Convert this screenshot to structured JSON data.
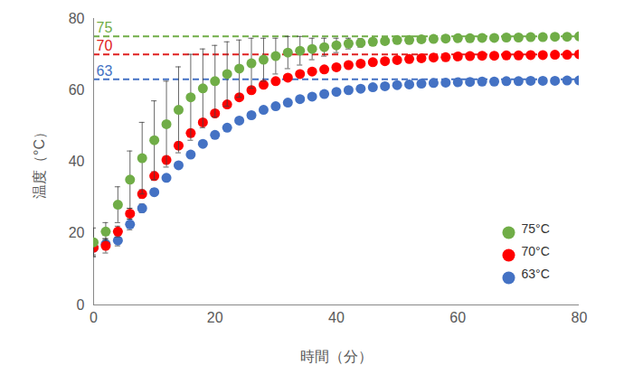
{
  "chart_data": {
    "type": "scatter",
    "xlabel": "時間（分）",
    "ylabel": "温度（°C）",
    "xlim": [
      0,
      80
    ],
    "ylim": [
      0,
      80
    ],
    "xticks": [
      0,
      20,
      40,
      60,
      80
    ],
    "yticks": [
      0,
      20,
      40,
      60,
      80
    ],
    "grid": false,
    "legend": "bottom-right",
    "x": [
      0,
      2,
      4,
      6,
      8,
      10,
      12,
      14,
      16,
      18,
      20,
      22,
      24,
      26,
      28,
      30,
      32,
      34,
      36,
      38,
      40,
      42,
      44,
      46,
      48,
      50,
      52,
      54,
      56,
      58,
      60,
      62,
      64,
      66,
      68,
      70,
      72,
      74,
      76,
      78,
      80
    ],
    "series": [
      {
        "name": "75°C",
        "color": "#70ad47",
        "marker": "circle",
        "values": [
          17.5,
          20.5,
          28,
          35,
          41,
          46,
          50.5,
          54.5,
          58,
          60.5,
          62.5,
          64.5,
          66,
          67.5,
          68.5,
          69.5,
          70.5,
          71,
          71.5,
          72,
          72.5,
          73,
          73.2,
          73.5,
          73.7,
          74,
          74,
          74.2,
          74.3,
          74.4,
          74.5,
          74.5,
          74.6,
          74.6,
          74.7,
          74.7,
          74.8,
          74.8,
          74.9,
          74.9,
          75
        ],
        "errors": [
          4,
          2.5,
          5,
          8,
          10,
          11,
          12,
          12,
          12,
          11,
          10,
          9,
          8,
          7,
          6,
          5,
          4.5,
          4,
          3,
          2.5,
          2,
          1.5,
          1.2,
          1,
          0.8,
          0.7,
          0.6,
          0.5,
          0.5,
          0.4,
          0.4,
          0.4,
          0.3,
          0.3,
          0.3,
          0.3,
          0.3,
          0.3,
          0.3,
          0.3,
          0.3
        ]
      },
      {
        "name": "70°C",
        "color": "#ff0000",
        "marker": "circle",
        "values": [
          16,
          16.5,
          20.5,
          25.5,
          31,
          36,
          40.5,
          44.5,
          48,
          51,
          53.5,
          56,
          58,
          60,
          61.5,
          62.5,
          63.5,
          64.5,
          65.2,
          65.8,
          66.4,
          67,
          67.4,
          67.8,
          68.1,
          68.4,
          68.7,
          68.9,
          69.1,
          69.2,
          69.4,
          69.5,
          69.6,
          69.6,
          69.7,
          69.7,
          69.8,
          69.8,
          69.9,
          69.9,
          70
        ],
        "errors": [
          2.5,
          2,
          1.5,
          1.5,
          1.2,
          1.2,
          1,
          1,
          1,
          0.8,
          0.8,
          0.7,
          0.6,
          0.6,
          0.5,
          0.5,
          0.5,
          0.4,
          0.4,
          0.4,
          0.4,
          0.3,
          0.3,
          0.3,
          0.3,
          0.3,
          0.3,
          0.3,
          0.3,
          0.3,
          0.3,
          0.3,
          0.3,
          0.3,
          0.3,
          0.3,
          0.3,
          0.3,
          0.3,
          0.3,
          0.3
        ]
      },
      {
        "name": "63°C",
        "color": "#4472c4",
        "marker": "circle",
        "values": [
          16,
          17,
          18,
          22.5,
          27,
          31.5,
          35.5,
          39,
          42,
          45,
          47.5,
          49.5,
          51.5,
          53,
          54.5,
          55.5,
          56.5,
          57.5,
          58.2,
          58.9,
          59.5,
          60,
          60.4,
          60.8,
          61.1,
          61.4,
          61.6,
          61.8,
          62,
          62.1,
          62.2,
          62.3,
          62.4,
          62.4,
          62.5,
          62.5,
          62.6,
          62.6,
          62.6,
          62.7,
          62.7
        ],
        "errors": [
          2,
          1.5,
          1.5,
          1.5,
          1.2,
          1,
          0.8,
          0.8,
          0.6,
          0.6,
          0.5,
          0.4,
          0.4,
          0.4,
          0.4,
          0.4,
          0.4,
          0.4,
          0.4,
          0.4,
          0.4,
          0.3,
          0.3,
          0.3,
          0.3,
          0.3,
          0.3,
          0.3,
          0.3,
          0.3,
          0.3,
          0.3,
          0.3,
          0.3,
          0.3,
          0.3,
          0.3,
          0.3,
          0.3,
          0.3,
          0.3
        ]
      }
    ],
    "reference_lines": [
      {
        "value": 75,
        "label": "75",
        "color": "#70ad47",
        "line_style": "dashed"
      },
      {
        "value": 70,
        "label": "70",
        "color": "#e02020",
        "line_style": "dashed"
      },
      {
        "value": 63,
        "label": "63",
        "color": "#4472c4",
        "line_style": "dashed"
      }
    ]
  }
}
